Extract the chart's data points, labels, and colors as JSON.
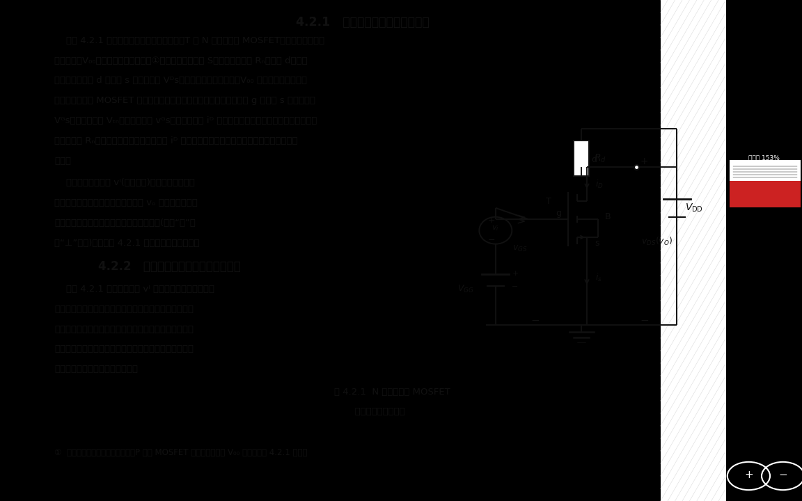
{
  "bg_color": "#000000",
  "page_bg": "#ffffff",
  "hatch_area_color": "#f5f5f5",
  "text_color": "#111111",
  "circuit_color": "#222222",
  "title": "4.2.1   基本共源极放大电路的组成",
  "section2_title": "4.2.2   基本共源极放大电路的工作原理",
  "para1": [
    "    在图 4.2.1 所示的基本共源极放大电路中，T 为 N 沟道增强型 MOSFET，是核心元件，起",
    "放大作用。V₀₀是漏极回路的直流电源①，它的负端接源极 S，正端通过电阵 Rₙ接漏极 d，以保",
    "证场效应管漏极 d 和源极 s 之间的电压 Vᴰs有一个合适的工作电压。V₀₀ 是栅极回路的直流电",
    "源，其作用是给 MOSFET 的栅源极间加上适当的偏置电压，并保证栅极 g 与源极 s 之间的电压",
    "Vᴳs大于开启电压 Vₜₙ，这样，由于 vᴳs能对漏极电流 iᴰ 进行控制，使场效应管有一个正常的工作",
    "状态。电阵 Rₙ的一个重要作用是将漏极电流 iᴰ 的变化转换为电压的变化，再送到放大电路的输",
    "出端。"
  ],
  "para2": [
    "    待放大的输入电压 vᴵ(时变电压)加在栅极与源极间",
    "的输入回路中，放大电路的输出电压 vₒ 由漏极与源极间",
    "取出。源极是输入回路与输出回路的共同端(称为“地”，",
    "用“⊥”表示)，所以图 4.2.1 称为共源极放大电路。"
  ],
  "para3": [
    "    设图 4.2.1 中的时变信号 vᴵ 为正弦信号电压时，放大",
    "电路中的电压或电流就包含有直流成分，即交流信号叠加",
    "在直流量上。为讨论方便，常将直流和交流分开进行，即",
    "分析直流时，将交流源置零，分析交流时将直流源置零。",
    "总的响应是两个单独响应的叠加。"
  ],
  "fig_caption_line1": "图 4.2.1  N 沟道增强型 MOSFET",
  "fig_caption_line2": "       基本共源极放大电路",
  "footnote": "①  为了保证场效应管能正常工作，P 沟道 MOSFET 共源极放大电路 V₀₀ 的极性与图 4.2.1 相反。",
  "side_text": "放大后 153%"
}
